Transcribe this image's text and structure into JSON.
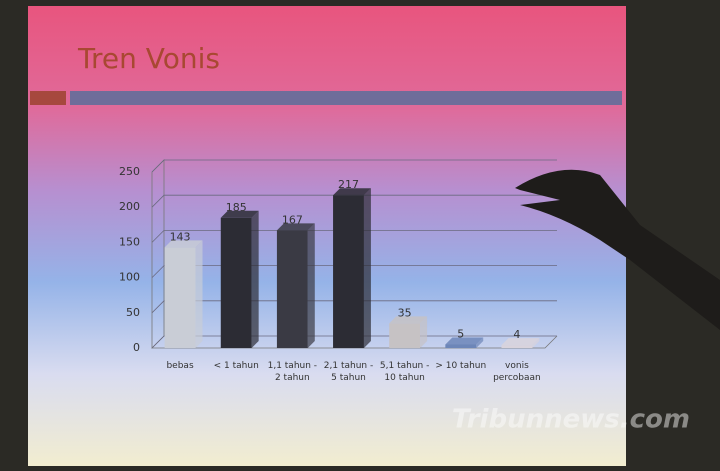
{
  "chart_data": {
    "type": "bar",
    "title": "Tren Vonis",
    "categories": [
      "bebas",
      "< 1 tahun",
      "1,1 tahun - 2 tahun",
      "2,1 tahun - 5 tahun",
      "5,1 tahun - 10 tahun",
      "> 10 tahun",
      "vonis percobaan"
    ],
    "values": [
      143,
      185,
      167,
      217,
      35,
      5,
      4
    ],
    "colors": [
      "#c9cdd6",
      "#2c2c34",
      "#3a3a44",
      "#2c2c34",
      "#c6c2c4",
      "#6d86b8",
      "#d9d3dc"
    ],
    "ylim": [
      0,
      250
    ],
    "yticks": [
      0,
      50,
      100,
      150,
      200,
      250
    ],
    "grid": true
  },
  "watermark": "Tribunnews.com"
}
